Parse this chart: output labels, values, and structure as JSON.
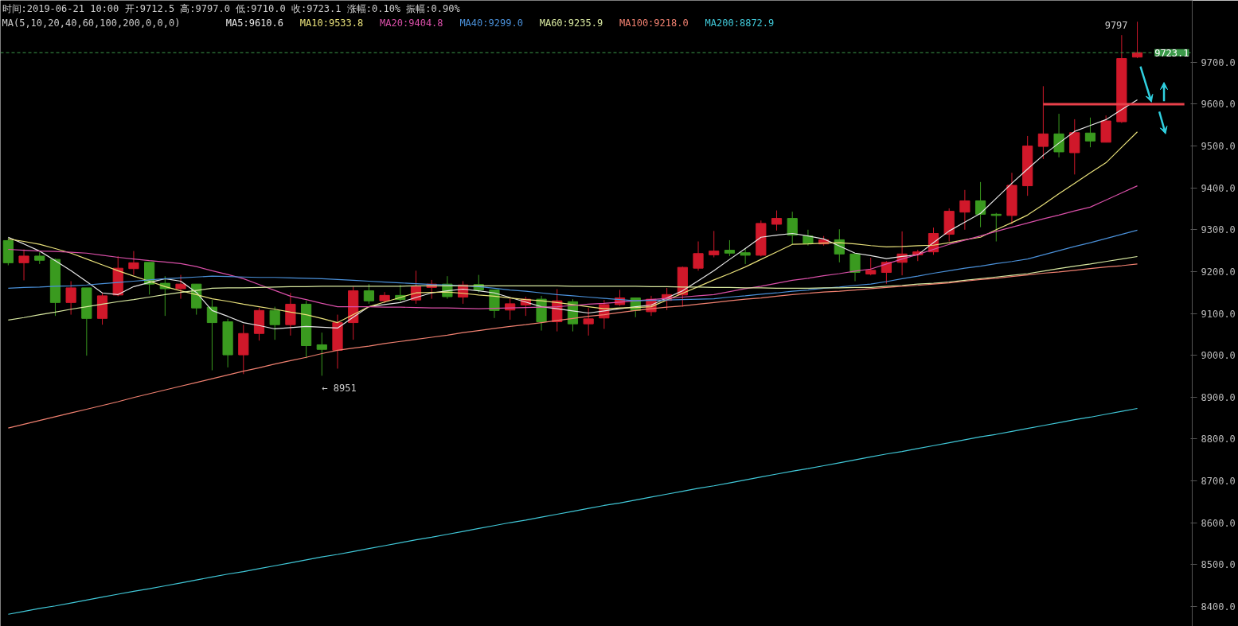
{
  "chart_data": {
    "type": "candlestick",
    "title": "时间:2019-06-21 10:00  开:9712.5  高:9797.0  低:9710.0  收:9723.1  涨幅:0.10%  振幅:0.90%",
    "legend_title": "MA(5,10,20,40,60,100,200,0,0,0)",
    "legend": "top",
    "categories": [
      null,
      null,
      null,
      null,
      null,
      null,
      null,
      null,
      null,
      null,
      null,
      null,
      null,
      null,
      null,
      null,
      null,
      null,
      null,
      null,
      null,
      null,
      null,
      null,
      null,
      null,
      null,
      null,
      null,
      null,
      null,
      null,
      null,
      null,
      null,
      null,
      null,
      null,
      null,
      null,
      null,
      null,
      null,
      null,
      null,
      null,
      null,
      null,
      null,
      null,
      null,
      null,
      null,
      null,
      null,
      null,
      null,
      null,
      null,
      null,
      null,
      null,
      null,
      null,
      null,
      null,
      null,
      null,
      null,
      null,
      null,
      null,
      null,
      null,
      null,
      null
    ],
    "ohlc": [
      [
        9274,
        9280,
        9215,
        9221
      ],
      [
        9221,
        9253,
        9179,
        9237
      ],
      [
        9237,
        9246,
        9218,
        9227
      ],
      [
        9229,
        9231,
        9094,
        9126
      ],
      [
        9126,
        9177,
        9097,
        9161
      ],
      [
        9161,
        9161,
        8999,
        9088
      ],
      [
        9088,
        9149,
        9073,
        9142
      ],
      [
        9144,
        9237,
        9141,
        9208
      ],
      [
        9207,
        9249,
        9192,
        9221
      ],
      [
        9222,
        9222,
        9145,
        9170
      ],
      [
        9172,
        9189,
        9094,
        9159
      ],
      [
        9159,
        9192,
        9135,
        9170
      ],
      [
        9170,
        9170,
        9097,
        9113
      ],
      [
        9115,
        9132,
        8964,
        9078
      ],
      [
        9080,
        9087,
        8971,
        9001
      ],
      [
        9001,
        9073,
        8955,
        9052
      ],
      [
        9052,
        9113,
        9035,
        9107
      ],
      [
        9107,
        9116,
        9037,
        9073
      ],
      [
        9073,
        9149,
        9047,
        9122
      ],
      [
        9122,
        9130,
        8993,
        9023
      ],
      [
        9025,
        9054,
        8951,
        9014
      ],
      [
        9012,
        9097,
        8968,
        9078
      ],
      [
        9078,
        9164,
        9037,
        9154
      ],
      [
        9154,
        9170,
        9123,
        9130
      ],
      [
        9130,
        9151,
        9125,
        9143
      ],
      [
        9143,
        9168,
        9128,
        9133
      ],
      [
        9132,
        9202,
        9123,
        9164
      ],
      [
        9162,
        9180,
        9135,
        9170
      ],
      [
        9170,
        9189,
        9135,
        9140
      ],
      [
        9139,
        9177,
        9123,
        9168
      ],
      [
        9169,
        9192,
        9150,
        9156
      ],
      [
        9156,
        9156,
        9089,
        9107
      ],
      [
        9108,
        9135,
        9085,
        9123
      ],
      [
        9120,
        9140,
        9094,
        9134
      ],
      [
        9134,
        9142,
        9059,
        9080
      ],
      [
        9080,
        9158,
        9057,
        9130
      ],
      [
        9128,
        9134,
        9057,
        9075
      ],
      [
        9075,
        9113,
        9047,
        9087
      ],
      [
        9089,
        9132,
        9063,
        9121
      ],
      [
        9121,
        9156,
        9118,
        9137
      ],
      [
        9137,
        9137,
        9091,
        9107
      ],
      [
        9104,
        9142,
        9094,
        9134
      ],
      [
        9131,
        9161,
        9108,
        9145
      ],
      [
        9144,
        9212,
        9116,
        9210
      ],
      [
        9208,
        9272,
        9202,
        9243
      ],
      [
        9240,
        9297,
        9234,
        9249
      ],
      [
        9251,
        9275,
        9237,
        9244
      ],
      [
        9245,
        9256,
        9218,
        9239
      ],
      [
        9239,
        9322,
        9236,
        9315
      ],
      [
        9313,
        9346,
        9298,
        9327
      ],
      [
        9327,
        9343,
        9265,
        9287
      ],
      [
        9285,
        9300,
        9262,
        9267
      ],
      [
        9266,
        9285,
        9262,
        9276
      ],
      [
        9276,
        9301,
        9222,
        9242
      ],
      [
        9242,
        9242,
        9177,
        9198
      ],
      [
        9194,
        9233,
        9191,
        9203
      ],
      [
        9198,
        9225,
        9171,
        9222
      ],
      [
        9222,
        9296,
        9191,
        9242
      ],
      [
        9240,
        9252,
        9225,
        9247
      ],
      [
        9247,
        9305,
        9240,
        9291
      ],
      [
        9289,
        9351,
        9272,
        9344
      ],
      [
        9342,
        9395,
        9300,
        9369
      ],
      [
        9369,
        9414,
        9306,
        9337
      ],
      [
        9337,
        9340,
        9272,
        9334
      ],
      [
        9334,
        9436,
        9313,
        9406
      ],
      [
        9405,
        9524,
        9381,
        9500
      ],
      [
        9499,
        9643,
        9469,
        9529
      ],
      [
        9529,
        9577,
        9473,
        9486
      ],
      [
        9484,
        9564,
        9432,
        9532
      ],
      [
        9531,
        9568,
        9497,
        9512
      ],
      [
        9509,
        9573,
        9509,
        9560
      ],
      [
        9558,
        9765,
        9555,
        9709
      ],
      [
        9712.5,
        9797,
        9710,
        9723.1
      ],
      null,
      null,
      null
    ],
    "colors": [
      "#3a9a1f",
      "#d0182a",
      "#3a9a1f",
      "#3a9a1f",
      "#d0182a",
      "#3a9a1f",
      "#d0182a",
      "#d0182a",
      "#d0182a",
      "#3a9a1f",
      "#3a9a1f",
      "#d0182a",
      "#3a9a1f",
      "#3a9a1f",
      "#3a9a1f",
      "#d0182a",
      "#d0182a",
      "#3a9a1f",
      "#d0182a",
      "#3a9a1f",
      "#3a9a1f",
      "#d0182a",
      "#d0182a",
      "#3a9a1f",
      "#d0182a",
      "#3a9a1f",
      "#d0182a",
      "#d0182a",
      "#3a9a1f",
      "#d0182a",
      "#3a9a1f",
      "#3a9a1f",
      "#d0182a",
      "#d0182a",
      "#3a9a1f",
      "#d0182a",
      "#3a9a1f",
      "#d0182a",
      "#d0182a",
      "#d0182a",
      "#3a9a1f",
      "#d0182a",
      "#d0182a",
      "#d0182a",
      "#d0182a",
      "#d0182a",
      "#3a9a1f",
      "#3a9a1f",
      "#d0182a",
      "#d0182a",
      "#3a9a1f",
      "#3a9a1f",
      "#d0182a",
      "#3a9a1f",
      "#3a9a1f",
      "#d0182a",
      "#d0182a",
      "#d0182a",
      "#d0182a",
      "#d0182a",
      "#d0182a",
      "#d0182a",
      "#3a9a1f",
      "#3a9a1f",
      "#d0182a",
      "#d0182a",
      "#d0182a",
      "#3a9a1f",
      "#d0182a",
      "#3a9a1f",
      "#d0182a",
      "#d0182a",
      "#d0182a",
      null,
      null,
      null
    ],
    "series": [
      {
        "type": "line",
        "name": "MA5:9610.6",
        "color": "#e6e6e6",
        "values": [
          9282,
          9266,
          9249,
          9226,
          9202,
          9176,
          9149,
          9145,
          9164,
          9174,
          9183,
          9177,
          9150,
          9107,
          9093,
          9078,
          9071,
          9063,
          9066,
          9069,
          9067,
          9065,
          9091,
          9116,
          9121,
          9126,
          9138,
          9149,
          9154,
          9158,
          9154,
          9149,
          9138,
          9127,
          9116,
          9111,
          9106,
          9101,
          9106,
          9111,
          9116,
          9120,
          9137,
          9154,
          9178,
          9202,
          9229,
          9255,
          9282,
          9287,
          9291,
          9285,
          9278,
          9261,
          9244,
          9238,
          9231,
          9236,
          9240,
          9269,
          9297,
          9318,
          9339,
          9375,
          9411,
          9445,
          9478,
          9507,
          9535,
          9549,
          9563,
          9587,
          9610.6,
          null,
          null,
          null
        ]
      },
      {
        "type": "line",
        "name": "MA10:9533.8",
        "color": "#e8e07a",
        "values": [
          9278,
          9272,
          9265,
          9255,
          9244,
          9230,
          9216,
          9202,
          9189,
          9177,
          9164,
          9154,
          9145,
          9135,
          9129,
          9122,
          9116,
          9110,
          9103,
          9097,
          9088,
          9078,
          9097,
          9116,
          9127,
          9138,
          9149,
          9150,
          9151,
          9148,
          9144,
          9141,
          9137,
          9133,
          9130,
          9126,
          9121,
          9116,
          9111,
          9113,
          9114,
          9116,
          9132,
          9148,
          9164,
          9180,
          9195,
          9211,
          9229,
          9247,
          9265,
          9266,
          9268,
          9269,
          9266,
          9262,
          9259,
          9260,
          9262,
          9263,
          9269,
          9276,
          9282,
          9300,
          9317,
          9335,
          9360,
          9386,
          9411,
          9436,
          9460,
          9497,
          9533.8,
          null,
          null,
          null
        ]
      },
      {
        "type": "line",
        "name": "MA20:9404.8",
        "color": "#d94fa8",
        "values": [
          9253,
          9251,
          9249,
          9248,
          9246,
          9244,
          9239,
          9234,
          9230,
          9226,
          9223,
          9219,
          9212,
          9202,
          9193,
          9183,
          9169,
          9155,
          9141,
          9133,
          9124,
          9116,
          9116,
          9116,
          9115,
          9115,
          9114,
          9113,
          9113,
          9112,
          9111,
          9112,
          9113,
          9114,
          9115,
          9116,
          9119,
          9122,
          9124,
          9127,
          9130,
          9133,
          9136,
          9139,
          9142,
          9145,
          9152,
          9159,
          9165,
          9172,
          9179,
          9184,
          9190,
          9195,
          9201,
          9206,
          9218,
          9230,
          9241,
          9253,
          9265,
          9275,
          9285,
          9296,
          9306,
          9316,
          9326,
          9335,
          9345,
          9354,
          9371,
          9388,
          9404.8,
          null,
          null,
          null
        ]
      },
      {
        "type": "line",
        "name": "MA40:9299.0",
        "color": "#4a90d9",
        "values": [
          9160,
          9162,
          9163,
          9165,
          9166,
          9168,
          9171,
          9174,
          9177,
          9180,
          9183,
          9185,
          9187,
          9189,
          9188,
          9187,
          9186,
          9186,
          9185,
          9184,
          9183,
          9181,
          9179,
          9177,
          9175,
          9173,
          9171,
          9169,
          9168,
          9166,
          9164,
          9160,
          9156,
          9153,
          9149,
          9145,
          9142,
          9139,
          9136,
          9133,
          9130,
          9131,
          9132,
          9133,
          9134,
          9135,
          9139,
          9142,
          9146,
          9149,
          9153,
          9156,
          9160,
          9163,
          9167,
          9170,
          9176,
          9183,
          9189,
          9196,
          9202,
          9208,
          9213,
          9219,
          9224,
          9230,
          9240,
          9250,
          9260,
          9269,
          9279,
          9289,
          9299.0,
          null,
          null,
          null
        ]
      },
      {
        "type": "line",
        "name": "MA60:9235.9",
        "color": "#d8e8a0",
        "values": [
          9084,
          9090,
          9097,
          9103,
          9110,
          9116,
          9122,
          9128,
          9133,
          9139,
          9145,
          9150,
          9155,
          9160,
          9161,
          9161,
          9162,
          9163,
          9164,
          9164,
          9165,
          9165,
          9165,
          9165,
          9165,
          9165,
          9166,
          9166,
          9166,
          9166,
          9166,
          9166,
          9166,
          9166,
          9166,
          9166,
          9165,
          9165,
          9165,
          9165,
          9165,
          9164,
          9164,
          9163,
          9163,
          9162,
          9162,
          9161,
          9161,
          9160,
          9160,
          9160,
          9161,
          9161,
          9162,
          9162,
          9165,
          9167,
          9170,
          9172,
          9175,
          9179,
          9183,
          9187,
          9191,
          9195,
          9201,
          9207,
          9213,
          9218,
          9224,
          9230,
          9235.9,
          null,
          null,
          null
        ]
      },
      {
        "type": "line",
        "name": "MA100:9218.0",
        "color": "#f08070",
        "values": [
          8826,
          8835,
          8844,
          8853,
          8862,
          8871,
          8880,
          8889,
          8899,
          8908,
          8917,
          8926,
          8935,
          8944,
          8953,
          8962,
          8970,
          8979,
          8987,
          8995,
          9004,
          9012,
          9017,
          9022,
          9028,
          9033,
          9038,
          9043,
          9048,
          9054,
          9059,
          9064,
          9069,
          9073,
          9078,
          9083,
          9088,
          9093,
          9097,
          9102,
          9107,
          9111,
          9115,
          9118,
          9122,
          9126,
          9130,
          9134,
          9137,
          9141,
          9145,
          9148,
          9151,
          9153,
          9156,
          9159,
          9162,
          9165,
          9167,
          9170,
          9173,
          9177,
          9181,
          9184,
          9188,
          9192,
          9196,
          9199,
          9203,
          9207,
          9211,
          9214,
          9218.0,
          null,
          null,
          null
        ]
      },
      {
        "type": "line",
        "name": "MA200:8872.9",
        "color": "#40c8d8",
        "values": [
          8381,
          8388,
          8395,
          8401,
          8408,
          8415,
          8422,
          8429,
          8436,
          8442,
          8449,
          8456,
          8463,
          8470,
          8477,
          8483,
          8490,
          8497,
          8504,
          8511,
          8518,
          8524,
          8531,
          8538,
          8545,
          8552,
          8559,
          8565,
          8572,
          8579,
          8586,
          8593,
          8600,
          8606,
          8613,
          8620,
          8627,
          8634,
          8641,
          8647,
          8654,
          8661,
          8668,
          8675,
          8682,
          8688,
          8695,
          8702,
          8709,
          8716,
          8723,
          8729,
          8736,
          8743,
          8750,
          8757,
          8764,
          8770,
          8777,
          8784,
          8791,
          8798,
          8805,
          8811,
          8818,
          8825,
          8832,
          8839,
          8846,
          8852,
          8859,
          8866,
          8872.9,
          null,
          null,
          null
        ]
      },
      {
        "type": "line",
        "color": "#e8404a",
        "values": [
          null,
          null,
          null,
          null,
          null,
          null,
          null,
          null,
          null,
          null,
          null,
          null,
          null,
          null,
          null,
          null,
          null,
          null,
          null,
          null,
          null,
          null,
          null,
          null,
          null,
          null,
          null,
          null,
          null,
          null,
          null,
          null,
          null,
          null,
          null,
          null,
          null,
          null,
          null,
          null,
          null,
          null,
          null,
          null,
          null,
          null,
          null,
          null,
          null,
          null,
          null,
          null,
          null,
          null,
          null,
          null,
          null,
          null,
          null,
          null,
          null,
          null,
          null,
          null,
          null,
          null,
          9600,
          9600,
          9600,
          9600,
          9600,
          9600,
          9600,
          9600,
          9600,
          9600
        ]
      }
    ],
    "ylim": [
      8352,
      9848
    ],
    "yticks": [
      {
        "value": 8400,
        "label": "8400.0"
      },
      {
        "value": 8500,
        "label": "8500.0"
      },
      {
        "value": 8600,
        "label": "8600.0"
      },
      {
        "value": 8700,
        "label": "8700.0"
      },
      {
        "value": 8800,
        "label": "8800.0"
      },
      {
        "value": 8900,
        "label": "8900.0"
      },
      {
        "value": 9000,
        "label": "9000.0"
      },
      {
        "value": 9100,
        "label": "9100.0"
      },
      {
        "value": 9200,
        "label": "9200.0"
      },
      {
        "value": 9300,
        "label": "9300.0"
      },
      {
        "value": 9400,
        "label": "9400.0"
      },
      {
        "value": 9500,
        "label": "9500.0"
      },
      {
        "value": 9600,
        "label": "9600.0"
      },
      {
        "value": 9700,
        "label": "9700.0"
      }
    ],
    "ref_lines": [
      {
        "axis": "y",
        "value": 9723.1,
        "label": "9723.1",
        "color": "#3c9a4a",
        "line_style": "dashed"
      }
    ],
    "annotations": [
      "← 8951",
      "9797"
    ],
    "tick_labels": "y",
    "grid": false
  }
}
